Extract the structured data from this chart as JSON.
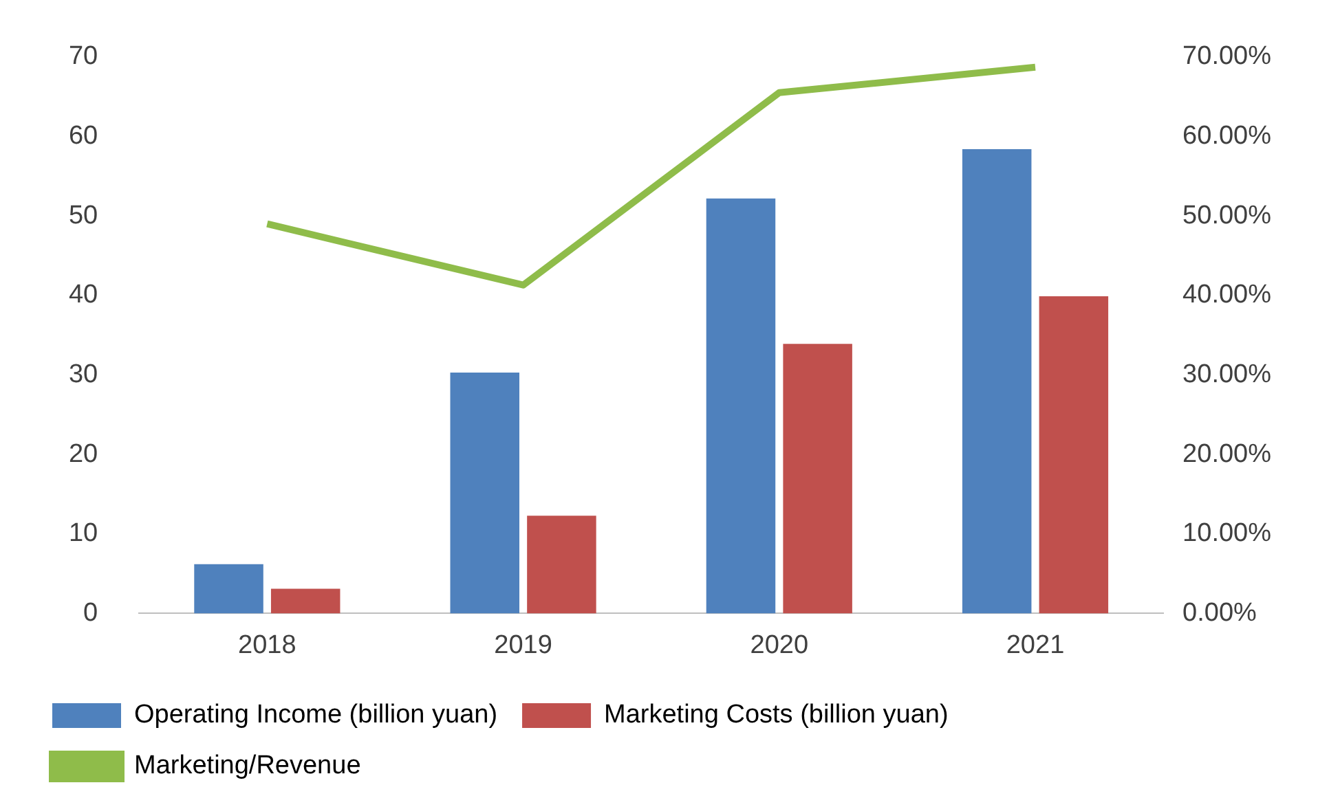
{
  "chart_data": {
    "type": "bar",
    "categories": [
      "2018",
      "2019",
      "2020",
      "2021"
    ],
    "series": [
      {
        "name": "Operating Income (billion yuan)",
        "color": "#4f81bd",
        "values": [
          6.2,
          30.3,
          52.2,
          58.4
        ]
      },
      {
        "name": "Marketing Costs (billion yuan)",
        "color": "#c0504d",
        "values": [
          3.1,
          12.3,
          33.9,
          39.9
        ]
      },
      {
        "name": "Marketing/Revenue",
        "color": "#8fbc4a",
        "type": "line",
        "axis": "y2",
        "values": [
          49.0,
          41.3,
          65.5,
          68.7
        ]
      }
    ],
    "ylim": [
      0,
      70
    ],
    "yticks": [
      0,
      10,
      20,
      30,
      40,
      50,
      60,
      70
    ],
    "y2lim": [
      0,
      70
    ],
    "y2ticks": [
      {
        "value": 0,
        "label": "0.00%"
      },
      {
        "value": 10,
        "label": "10.00%"
      },
      {
        "value": 20,
        "label": "20.00%"
      },
      {
        "value": 30,
        "label": "30.00%"
      },
      {
        "value": 40,
        "label": "40.00%"
      },
      {
        "value": 50,
        "label": "50.00%"
      },
      {
        "value": 60,
        "label": "60.00%"
      },
      {
        "value": 70,
        "label": "70.00%"
      }
    ],
    "grid": false,
    "legend": "bottom",
    "marker": "none"
  }
}
